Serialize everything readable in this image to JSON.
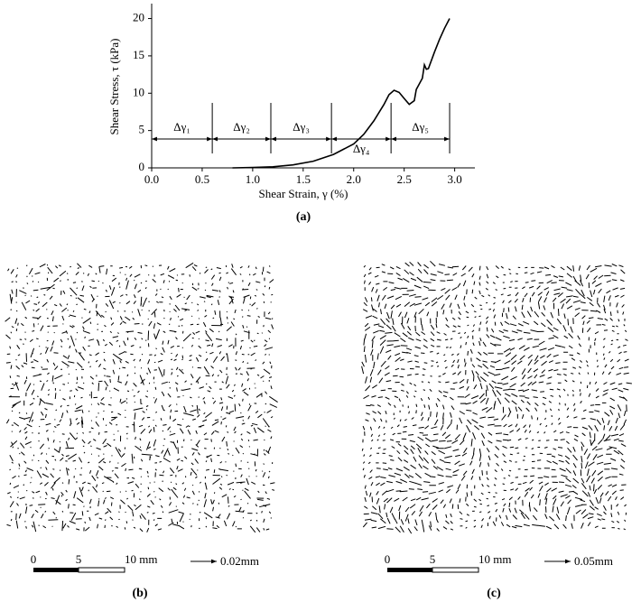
{
  "chart_data": {
    "type": "line",
    "caption": "(a)",
    "x_label": "Shear Strain, γ (%)",
    "y_label": "Shear Stress, τ (kPa)",
    "x": [
      0.8,
      1.0,
      1.2,
      1.4,
      1.6,
      1.8,
      2.0,
      2.1,
      2.2,
      2.3,
      2.35,
      2.4,
      2.45,
      2.5,
      2.55,
      2.6,
      2.62,
      2.68,
      2.7,
      2.72,
      2.74,
      2.8,
      2.85,
      2.9,
      2.95
    ],
    "values": [
      0,
      0.05,
      0.15,
      0.4,
      0.9,
      1.8,
      3.2,
      4.5,
      6.3,
      8.5,
      9.8,
      10.4,
      10.1,
      9.3,
      8.5,
      9.0,
      10.5,
      12.0,
      13.8,
      13.2,
      13.3,
      15.5,
      17.2,
      18.7,
      20.0
    ],
    "color": "#000000",
    "xlim": [
      0,
      3.2
    ],
    "ylim": [
      0,
      22
    ],
    "xticks": [
      {
        "value": 0,
        "label": "0.0"
      },
      {
        "value": 0.5,
        "label": "0.5"
      },
      {
        "value": 1,
        "label": "1.0"
      },
      {
        "value": 1.5,
        "label": "1.5"
      },
      {
        "value": 2,
        "label": "2.0"
      },
      {
        "value": 2.5,
        "label": "2.5"
      },
      {
        "value": 3,
        "label": "3.0"
      }
    ],
    "yticks": [
      0,
      5,
      10,
      15,
      20
    ],
    "intervals": {
      "labels": [
        "Δγ₁",
        "Δγ₂",
        "Δγ₃",
        "Δγ₄",
        "Δγ₅"
      ],
      "edges": [
        0,
        0.6,
        1.18,
        1.78,
        2.37,
        2.95
      ]
    }
  },
  "panels": [
    {
      "caption": "(b)",
      "scale_bar": [
        "0",
        "5",
        "10 mm"
      ],
      "vector_scale": "0.02mm"
    },
    {
      "caption": "(c)",
      "scale_bar": [
        "0",
        "5",
        "10 mm"
      ],
      "vector_scale": "0.05mm"
    }
  ]
}
